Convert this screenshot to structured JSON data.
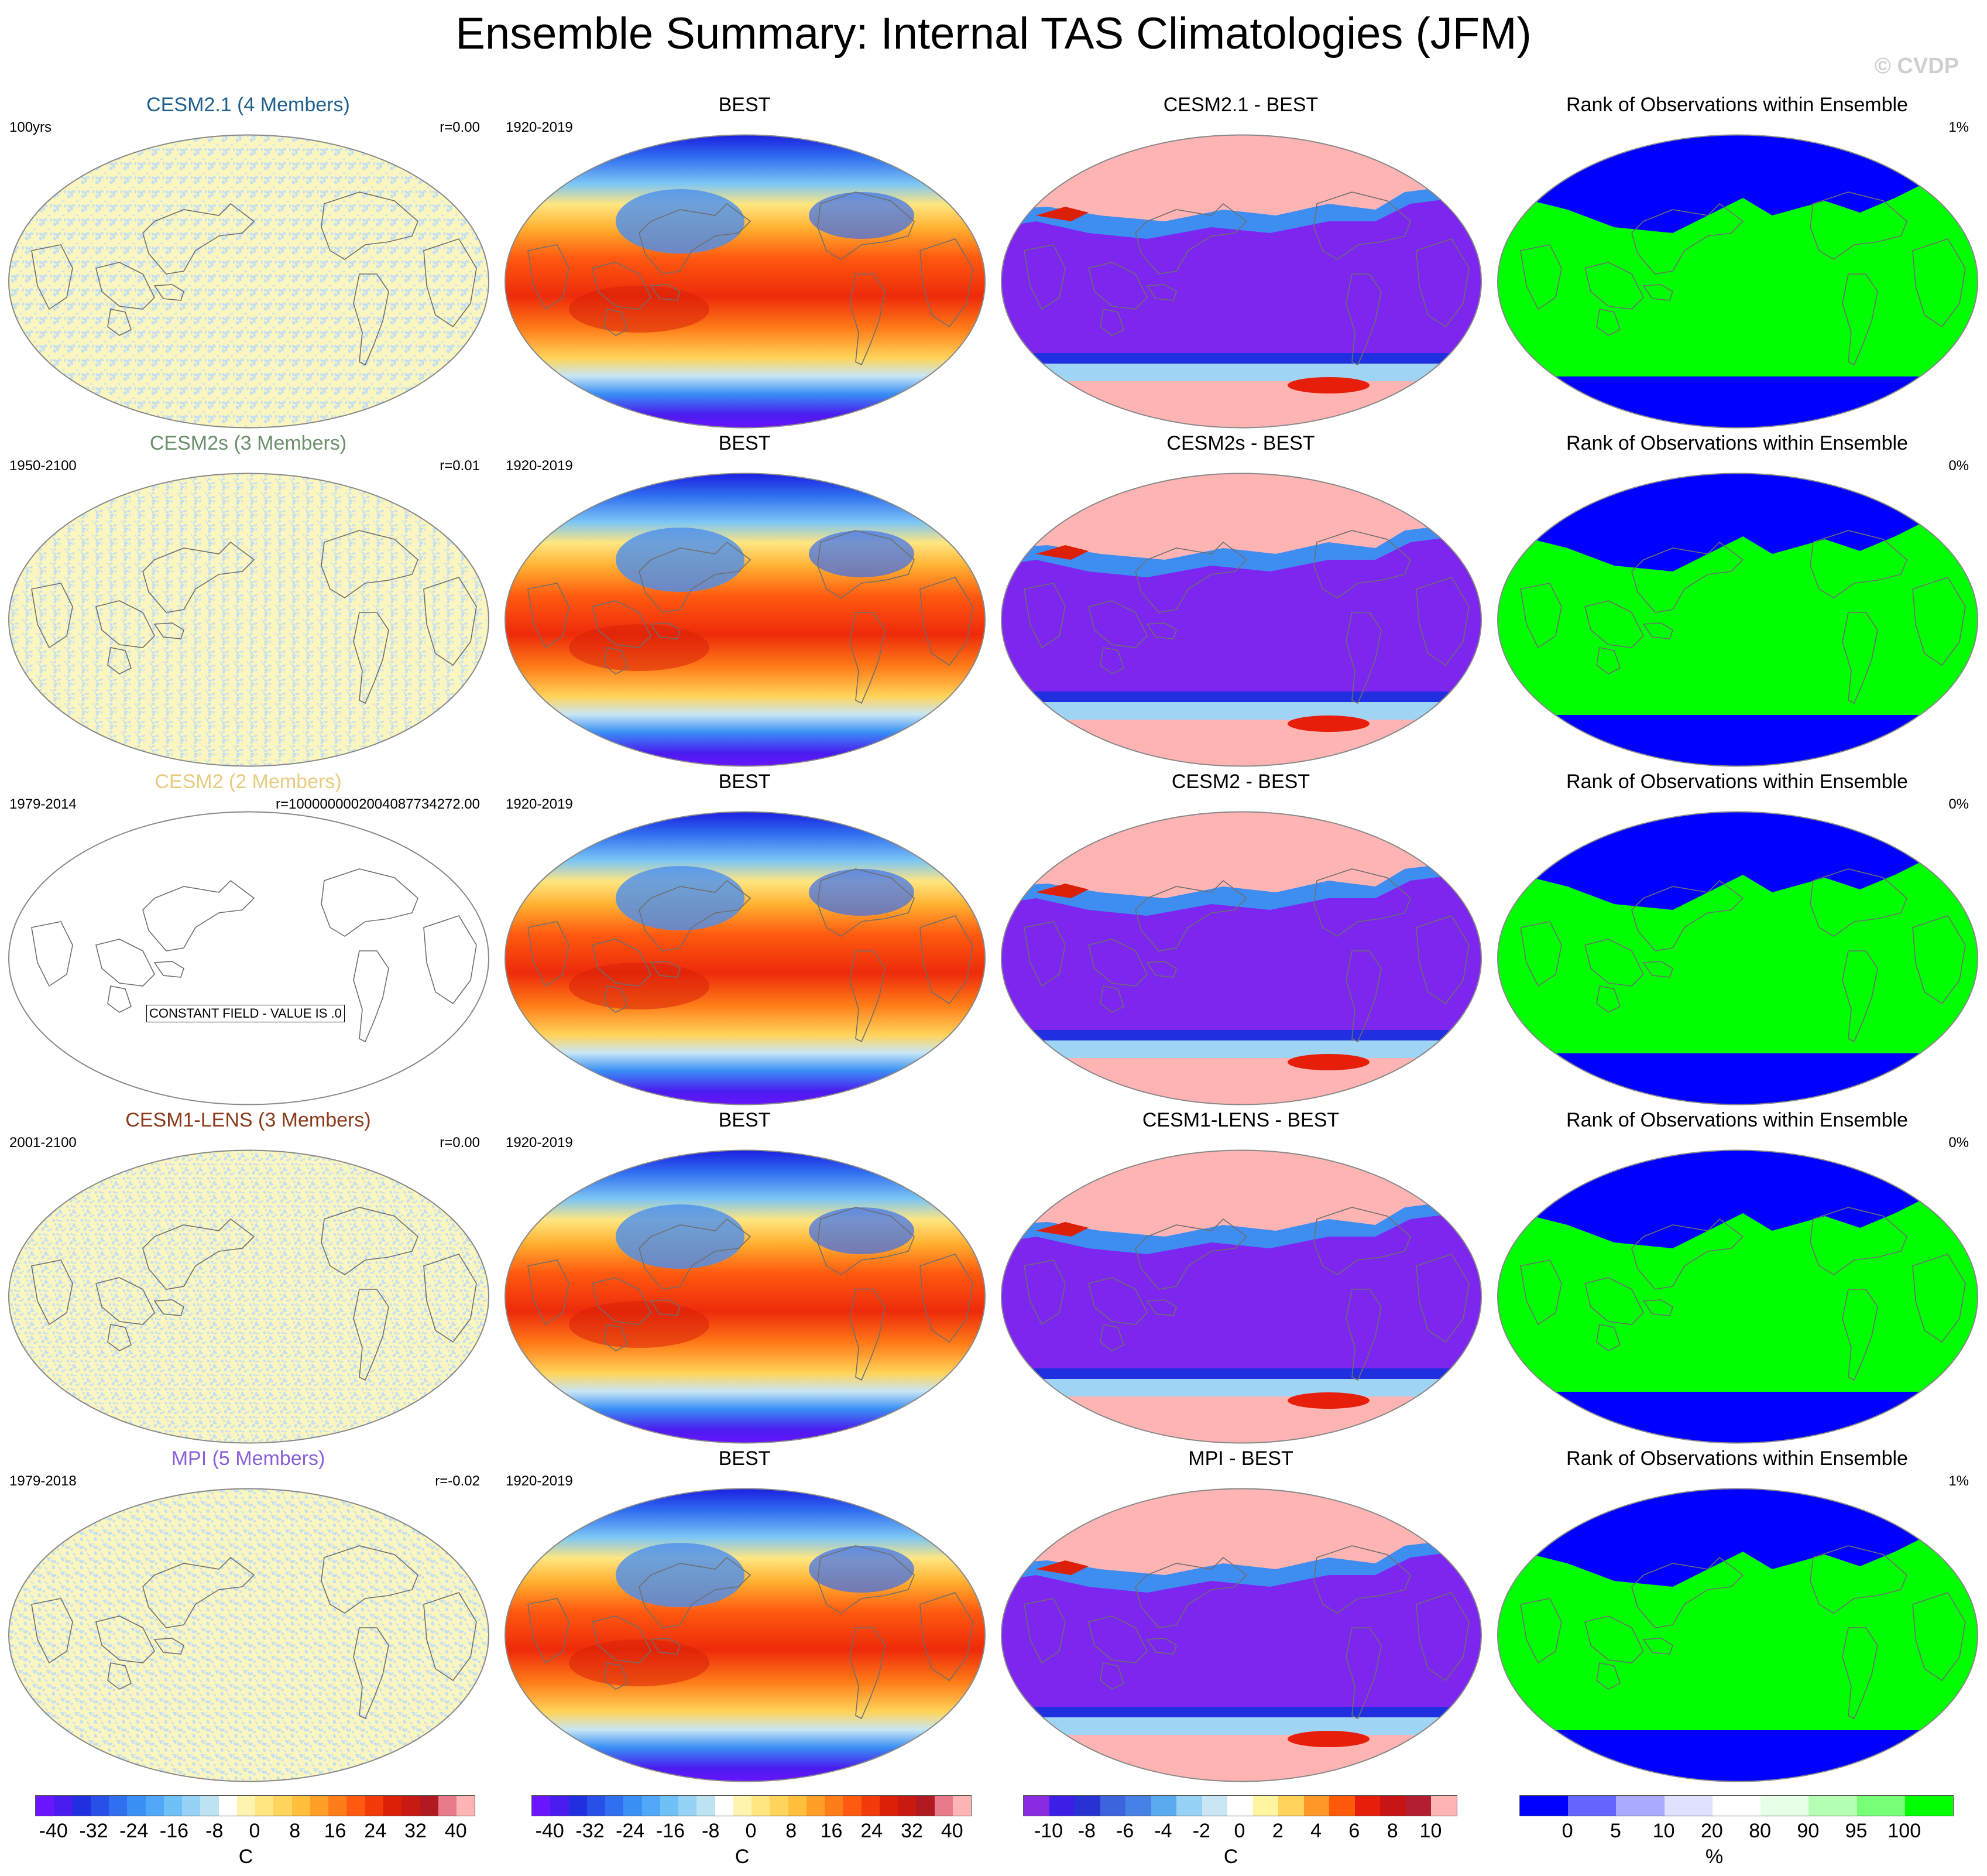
{
  "title": "Ensemble Summary: Internal TAS Climatologies (JFM)",
  "copyright": "© CVDP",
  "rows": [
    {
      "model": {
        "title": "CESM2.1 (4 Members)",
        "title_color": "#1f5f8b",
        "left": "100yrs",
        "right": "r=0.00",
        "kind": "noise"
      },
      "obs": {
        "title": "BEST",
        "left": "1920-2019"
      },
      "diff": {
        "title": "CESM2.1 - BEST"
      },
      "rank": {
        "title": "Rank of Observations within Ensemble",
        "right": "1%"
      }
    },
    {
      "model": {
        "title": "CESM2s (3 Members)",
        "title_color": "#6b8f6b",
        "left": "1950-2100",
        "right": "r=0.01",
        "kind": "noise"
      },
      "obs": {
        "title": "BEST",
        "left": "1920-2019"
      },
      "diff": {
        "title": "CESM2s - BEST"
      },
      "rank": {
        "title": "Rank of Observations within Ensemble",
        "right": "0%"
      }
    },
    {
      "model": {
        "title": "CESM2 (2 Members)",
        "title_color": "#e6cc80",
        "left": "1979-2014",
        "right": "r=1000000002004087734272.00",
        "kind": "constant",
        "constant_label": "CONSTANT FIELD - VALUE IS .0"
      },
      "obs": {
        "title": "BEST",
        "left": "1920-2019"
      },
      "diff": {
        "title": "CESM2 - BEST"
      },
      "rank": {
        "title": "Rank of Observations within Ensemble",
        "right": "0%"
      }
    },
    {
      "model": {
        "title": "CESM1-LENS (3 Members)",
        "title_color": "#8b3a1a",
        "left": "2001-2100",
        "right": "r=0.00",
        "kind": "noise"
      },
      "obs": {
        "title": "BEST",
        "left": "1920-2019"
      },
      "diff": {
        "title": "CESM1-LENS - BEST"
      },
      "rank": {
        "title": "Rank of Observations within Ensemble",
        "right": "0%"
      }
    },
    {
      "model": {
        "title": "MPI (5 Members)",
        "title_color": "#8a5fd6",
        "left": "1979-2018",
        "right": "r=-0.02",
        "kind": "noise"
      },
      "obs": {
        "title": "BEST",
        "left": "1920-2019"
      },
      "diff": {
        "title": "MPI - BEST"
      },
      "rank": {
        "title": "Rank of Observations within Ensemble",
        "right": "1%"
      }
    }
  ],
  "legends": [
    {
      "unit": "C",
      "labels": [
        "-40",
        "-32",
        "-24",
        "-16",
        "-8",
        "0",
        "8",
        "16",
        "24",
        "32",
        "40"
      ],
      "colors": [
        "#6a14ff",
        "#4a1cf0",
        "#2030e0",
        "#2850e8",
        "#3070f0",
        "#3a90f5",
        "#52a8f8",
        "#70c0f8",
        "#96d2f5",
        "#bde2f2",
        "#ffffff",
        "#fff3b0",
        "#ffe680",
        "#ffd45a",
        "#ffbe3c",
        "#ff9f28",
        "#ff7d18",
        "#ff5a10",
        "#f23a0a",
        "#dc2008",
        "#c81a10",
        "#b01a20",
        "#e87a8c",
        "#ffb4b4"
      ]
    },
    {
      "unit": "C",
      "labels": [
        "-40",
        "-32",
        "-24",
        "-16",
        "-8",
        "0",
        "8",
        "16",
        "24",
        "32",
        "40"
      ],
      "colors": [
        "#6a14ff",
        "#4a1cf0",
        "#2030e0",
        "#2850e8",
        "#3070f0",
        "#3a90f5",
        "#52a8f8",
        "#70c0f8",
        "#96d2f5",
        "#bde2f2",
        "#ffffff",
        "#fff3b0",
        "#ffe680",
        "#ffd45a",
        "#ffbe3c",
        "#ff9f28",
        "#ff7d18",
        "#ff5a10",
        "#f23a0a",
        "#dc2008",
        "#c81a10",
        "#b01a20",
        "#e87a8c",
        "#ffb4b4"
      ]
    },
    {
      "unit": "C",
      "labels": [
        "-10",
        "-8",
        "-6",
        "-4",
        "-2",
        "0",
        "2",
        "4",
        "6",
        "8",
        "10"
      ],
      "colors": [
        "#8a2be2",
        "#3c1ee6",
        "#2832d2",
        "#3c64dc",
        "#4682e6",
        "#5aaaf0",
        "#96d2f5",
        "#c8e6f5",
        "#ffffff",
        "#fff5a0",
        "#ffd25a",
        "#ff9628",
        "#ff5a0a",
        "#e61e0a",
        "#c81414",
        "#b41e32",
        "#ffb4b4"
      ]
    },
    {
      "unit": "%",
      "labels": [
        "0",
        "5",
        "10",
        "20",
        "80",
        "90",
        "95",
        "100"
      ],
      "colors": [
        "#0000ff",
        "#6464ff",
        "#aaaaff",
        "#e0e0ff",
        "#ffffff",
        "#e6ffe6",
        "#b4ffb4",
        "#78ff78",
        "#00ff00"
      ]
    }
  ],
  "colors": {
    "land_outline": "#6e6e6e",
    "map_border": "#888888"
  }
}
